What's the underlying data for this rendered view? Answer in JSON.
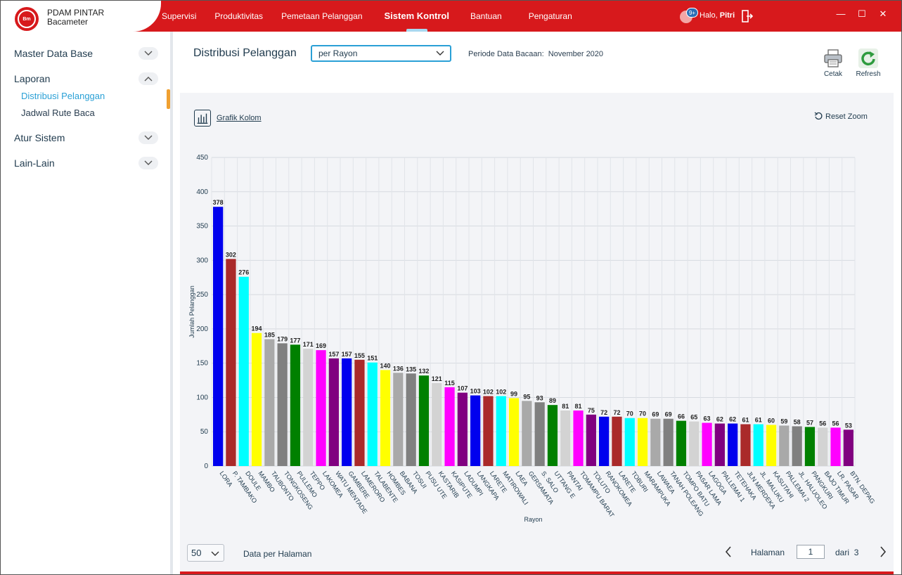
{
  "app": {
    "name_line1": "PDAM PINTAR",
    "name_line2": "Bacameter",
    "logo_text": "Bm"
  },
  "nav": [
    "Supervisi",
    "Produktivitas",
    "Pemetaan Pelanggan",
    "Sistem Kontrol",
    "Bantuan",
    "Pengaturan"
  ],
  "nav_active": "Sistem Kontrol",
  "user": {
    "greeting": "Halo,",
    "name": "Pitri",
    "notif_badge": "9+"
  },
  "window_controls": {
    "minimize": "—",
    "maximize": "☐",
    "close": "✕"
  },
  "sidebar": {
    "group1": "Master Data Base",
    "group2": "Laporan",
    "item1": "Distribusi Pelanggan",
    "item2": "Jadwal Rute Baca",
    "group3": "Atur Sistem",
    "group4": "Lain-Lain"
  },
  "main": {
    "title": "Distribusi Pelanggan",
    "select_value": "per Rayon",
    "period_label": "Periode Data Bacaan:",
    "period_value": "November 2020",
    "print_label": "Cetak",
    "refresh_label": "Refresh",
    "chart_link": "Grafik Kolom",
    "reset_zoom": "Reset Zoom"
  },
  "pagination": {
    "per_page": "50",
    "per_page_label": "Data per Halaman",
    "page_label": "Halaman",
    "page": "1",
    "of_label": "dari",
    "total_pages": "3"
  },
  "colors": {
    "accent_red": "#d7191c",
    "accent_blue": "#2aa0d6"
  },
  "chart_data": {
    "type": "bar",
    "xlabel": "Rayon",
    "ylabel": "Jumlah Pelanggan",
    "ylim": [
      0,
      450
    ],
    "yticks": [
      0,
      50,
      100,
      150,
      200,
      250,
      300,
      350,
      400,
      450
    ],
    "grid": true,
    "categories": [
      "LORA",
      "P. TAMBAKO",
      "DOULE",
      "MAMBO",
      "TAUBONTO",
      "TONGKOSENG",
      "PULLEMO",
      "TEPPO",
      "LAKOMEA",
      "WATU MENTADE",
      "GAMBERE",
      "LAMERORO",
      "TALABENTE",
      "HOMBES",
      "BABANA",
      "TOSUI",
      "PUSU UTE",
      "KASTARIB",
      "KASIPUTE",
      "LADUMPI",
      "LANGKAPA",
      "LARETE",
      "MATIROWALI",
      "LAEA",
      "GERSAMATA",
      "S. SALO",
      "UTTANG E",
      "PANTAI",
      "TOMAMPU BARAT",
      "TOLUTO",
      "RANOKOMEA",
      "LARETE",
      "TOBURI",
      "MARAMPUKA",
      "LAWAEA",
      "TANAH POLEANG",
      "TOMPO BATU",
      "PASAR LAMA",
      "LAGOGA",
      "PALLEMAI 1",
      "TETEHAKA",
      "JLN MERDEKA",
      "JL. MALUKU",
      "KASUTAHI",
      "PALLEMAI 2",
      "JL. HALUOLEO",
      "PANGKURI",
      "BAJO TIMUR",
      "LR. PASAR",
      "BTN. DEPAG"
    ],
    "values": [
      378,
      302,
      276,
      194,
      185,
      179,
      177,
      171,
      169,
      157,
      157,
      155,
      151,
      140,
      136,
      135,
      132,
      121,
      115,
      107,
      103,
      102,
      102,
      99,
      95,
      93,
      89,
      81,
      81,
      75,
      72,
      72,
      70,
      70,
      69,
      69,
      66,
      65,
      63,
      62,
      62,
      61,
      61,
      60,
      59,
      58,
      57,
      56,
      56,
      53
    ],
    "bar_colors": [
      "#0000ee",
      "#aa2a2a",
      "#00ffff",
      "#ffff00",
      "#a9a9a9",
      "#808080",
      "#008000",
      "#d3d3d3",
      "#ff00ff",
      "#800080",
      "#0000ee",
      "#aa2a2a",
      "#00ffff",
      "#ffff00",
      "#a9a9a9",
      "#808080",
      "#008000",
      "#d3d3d3",
      "#ff00ff",
      "#800080",
      "#0000ee",
      "#aa2a2a",
      "#00ffff",
      "#ffff00",
      "#a9a9a9",
      "#808080",
      "#008000",
      "#d3d3d3",
      "#ff00ff",
      "#800080",
      "#0000ee",
      "#aa2a2a",
      "#00ffff",
      "#ffff00",
      "#a9a9a9",
      "#808080",
      "#008000",
      "#d3d3d3",
      "#ff00ff",
      "#800080",
      "#0000ee",
      "#aa2a2a",
      "#00ffff",
      "#ffff00",
      "#a9a9a9",
      "#808080",
      "#008000",
      "#d3d3d3",
      "#ff00ff",
      "#800080"
    ]
  }
}
